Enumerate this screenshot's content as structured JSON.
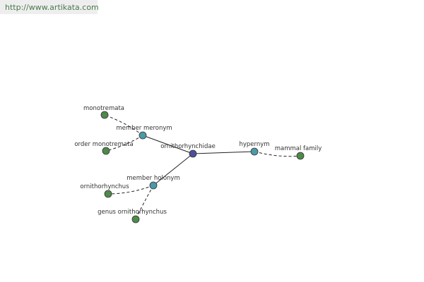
{
  "header": {
    "url": "http://www.artikata.com"
  },
  "nodes": [
    {
      "label": "ornithorhynchidae"
    },
    {
      "label": "member meronym"
    },
    {
      "label": "hypernym"
    },
    {
      "label": "member holonym"
    },
    {
      "label": "monotremata"
    },
    {
      "label": "order monotremata"
    },
    {
      "label": "mammal family"
    },
    {
      "label": "ornithorhynchus"
    },
    {
      "label": "genus ornithorhynchus"
    }
  ]
}
